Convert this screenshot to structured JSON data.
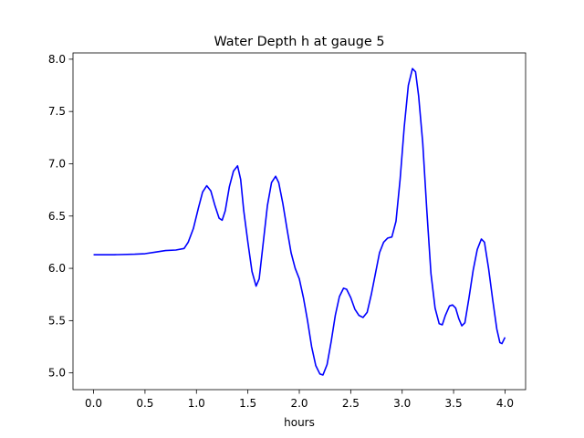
{
  "chart_data": {
    "type": "line",
    "title": "Water Depth h at gauge 5",
    "xlabel": "hours",
    "ylabel": "",
    "xlim": [
      -0.2,
      4.2
    ],
    "ylim": [
      4.84,
      8.06
    ],
    "xticks": [
      0.0,
      0.5,
      1.0,
      1.5,
      2.0,
      2.5,
      3.0,
      3.5,
      4.0
    ],
    "xtick_labels": [
      "0.0",
      "0.5",
      "1.0",
      "1.5",
      "2.0",
      "2.5",
      "3.0",
      "3.5",
      "4.0"
    ],
    "yticks": [
      5.0,
      5.5,
      6.0,
      6.5,
      7.0,
      7.5,
      8.0
    ],
    "ytick_labels": [
      "5.0",
      "5.5",
      "6.0",
      "6.5",
      "7.0",
      "7.5",
      "8.0"
    ],
    "grid": false,
    "series": [
      {
        "color": "#0000ff",
        "points": [
          [
            0.0,
            6.13
          ],
          [
            0.2,
            6.13
          ],
          [
            0.4,
            6.135
          ],
          [
            0.5,
            6.14
          ],
          [
            0.6,
            6.155
          ],
          [
            0.7,
            6.17
          ],
          [
            0.8,
            6.175
          ],
          [
            0.88,
            6.19
          ],
          [
            0.92,
            6.25
          ],
          [
            0.97,
            6.38
          ],
          [
            1.02,
            6.58
          ],
          [
            1.06,
            6.73
          ],
          [
            1.1,
            6.79
          ],
          [
            1.14,
            6.74
          ],
          [
            1.18,
            6.6
          ],
          [
            1.22,
            6.48
          ],
          [
            1.25,
            6.46
          ],
          [
            1.28,
            6.55
          ],
          [
            1.32,
            6.78
          ],
          [
            1.36,
            6.93
          ],
          [
            1.4,
            6.98
          ],
          [
            1.43,
            6.85
          ],
          [
            1.46,
            6.55
          ],
          [
            1.5,
            6.25
          ],
          [
            1.54,
            5.97
          ],
          [
            1.58,
            5.83
          ],
          [
            1.61,
            5.9
          ],
          [
            1.65,
            6.25
          ],
          [
            1.69,
            6.6
          ],
          [
            1.73,
            6.82
          ],
          [
            1.77,
            6.88
          ],
          [
            1.8,
            6.82
          ],
          [
            1.84,
            6.62
          ],
          [
            1.88,
            6.38
          ],
          [
            1.92,
            6.15
          ],
          [
            1.96,
            6.0
          ],
          [
            2.0,
            5.9
          ],
          [
            2.04,
            5.72
          ],
          [
            2.08,
            5.5
          ],
          [
            2.12,
            5.25
          ],
          [
            2.16,
            5.07
          ],
          [
            2.2,
            4.99
          ],
          [
            2.23,
            4.98
          ],
          [
            2.27,
            5.08
          ],
          [
            2.31,
            5.3
          ],
          [
            2.35,
            5.55
          ],
          [
            2.39,
            5.73
          ],
          [
            2.43,
            5.81
          ],
          [
            2.46,
            5.8
          ],
          [
            2.5,
            5.72
          ],
          [
            2.54,
            5.61
          ],
          [
            2.58,
            5.55
          ],
          [
            2.62,
            5.53
          ],
          [
            2.66,
            5.58
          ],
          [
            2.7,
            5.75
          ],
          [
            2.74,
            5.95
          ],
          [
            2.78,
            6.15
          ],
          [
            2.82,
            6.25
          ],
          [
            2.86,
            6.29
          ],
          [
            2.9,
            6.3
          ],
          [
            2.94,
            6.45
          ],
          [
            2.98,
            6.85
          ],
          [
            3.02,
            7.35
          ],
          [
            3.06,
            7.75
          ],
          [
            3.1,
            7.91
          ],
          [
            3.13,
            7.88
          ],
          [
            3.16,
            7.65
          ],
          [
            3.2,
            7.2
          ],
          [
            3.24,
            6.55
          ],
          [
            3.28,
            5.95
          ],
          [
            3.32,
            5.62
          ],
          [
            3.36,
            5.47
          ],
          [
            3.39,
            5.46
          ],
          [
            3.42,
            5.55
          ],
          [
            3.46,
            5.64
          ],
          [
            3.49,
            5.65
          ],
          [
            3.52,
            5.62
          ],
          [
            3.55,
            5.52
          ],
          [
            3.58,
            5.45
          ],
          [
            3.61,
            5.48
          ],
          [
            3.65,
            5.72
          ],
          [
            3.69,
            5.98
          ],
          [
            3.73,
            6.18
          ],
          [
            3.77,
            6.28
          ],
          [
            3.8,
            6.25
          ],
          [
            3.84,
            6.0
          ],
          [
            3.88,
            5.7
          ],
          [
            3.92,
            5.42
          ],
          [
            3.95,
            5.29
          ],
          [
            3.97,
            5.28
          ],
          [
            4.0,
            5.34
          ]
        ]
      }
    ]
  }
}
